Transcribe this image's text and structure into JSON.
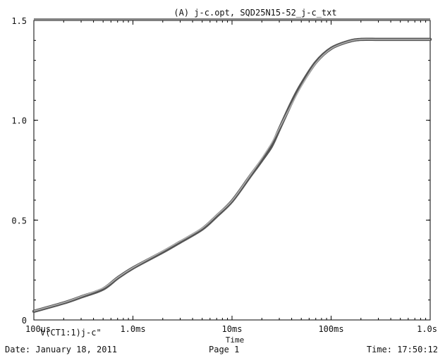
{
  "footer": {
    "date": "Date: January 18, 2011",
    "page": "Page 1",
    "time": "Time: 17:50:12"
  },
  "chart_data": {
    "type": "line",
    "title": "(A) j-c.opt, SQD25N15-52_j-c_txt",
    "xlabel": "Time",
    "ylabel": "",
    "x_scale": "log",
    "xlim": [
      "100us",
      "1.0s"
    ],
    "ylim": [
      0,
      1.5
    ],
    "x_ticks": [
      "100us",
      "1.0ms",
      "10ms",
      "100ms",
      "1.0s"
    ],
    "y_ticks": [
      "0",
      "0.5",
      "1.0",
      "1.5"
    ],
    "grid": false,
    "legend": "bottom-left",
    "colors": {
      "measured": "#555555",
      "fitted": "#b0b0b0",
      "frame": "#000000"
    },
    "series": [
      {
        "name": "V(CT1:1)",
        "x": [
          "100us",
          "200us",
          "300us",
          "500us",
          "700us",
          "1.0ms",
          "2.0ms",
          "3.0ms",
          "5.0ms",
          "7.0ms",
          "10ms",
          "15ms",
          "20ms",
          "25ms",
          "30ms",
          "40ms",
          "50ms",
          "70ms",
          "100ms",
          "150ms",
          "200ms",
          "300ms",
          "500ms",
          "1.0s"
        ],
        "values": [
          0.043,
          0.085,
          0.115,
          0.155,
          0.21,
          0.26,
          0.34,
          0.39,
          0.455,
          0.52,
          0.595,
          0.715,
          0.8,
          0.87,
          0.955,
          1.09,
          1.18,
          1.29,
          1.36,
          1.395,
          1.405,
          1.405,
          1.405,
          1.405
        ]
      },
      {
        "name": "j-c",
        "x": [
          "100us",
          "200us",
          "300us",
          "500us",
          "700us",
          "1.0ms",
          "2.0ms",
          "3.0ms",
          "5.0ms",
          "7.0ms",
          "10ms",
          "15ms",
          "20ms",
          "25ms",
          "30ms",
          "40ms",
          "50ms",
          "70ms",
          "100ms",
          "150ms",
          "200ms",
          "300ms",
          "500ms",
          "1.0s"
        ],
        "values": [
          0.045,
          0.087,
          0.118,
          0.16,
          0.212,
          0.262,
          0.345,
          0.395,
          0.46,
          0.525,
          0.598,
          0.72,
          0.81,
          0.885,
          0.96,
          1.08,
          1.17,
          1.285,
          1.358,
          1.394,
          1.405,
          1.405,
          1.405,
          1.405
        ]
      }
    ],
    "legend_text": "V(CT1:1)j-c\""
  }
}
